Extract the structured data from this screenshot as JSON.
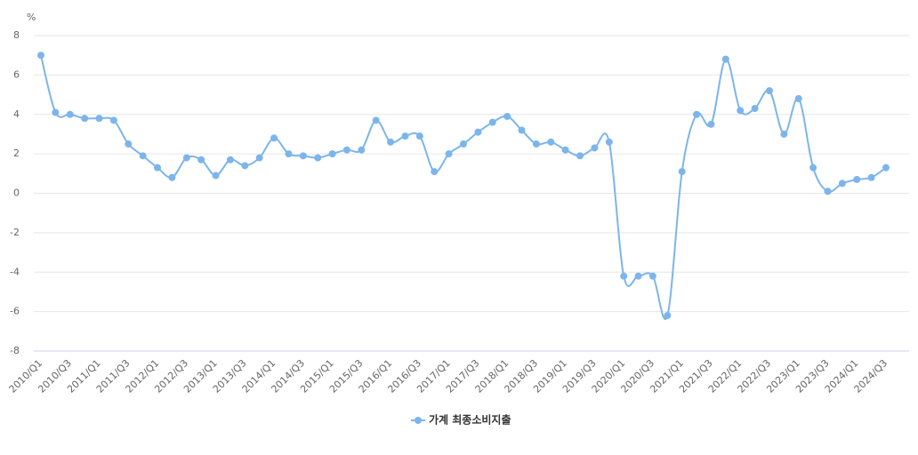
{
  "chart_data": {
    "type": "line",
    "y_unit": "%",
    "categories": [
      "2010/Q1",
      null,
      "2010/Q3",
      null,
      "2011/Q1",
      null,
      "2011/Q3",
      null,
      "2012/Q1",
      null,
      "2012/Q3",
      null,
      "2013/Q1",
      null,
      "2013/Q3",
      null,
      "2014/Q1",
      null,
      "2014/Q3",
      null,
      "2015/Q1",
      null,
      "2015/Q3",
      null,
      "2016/Q1",
      null,
      "2016/Q3",
      null,
      "2017/Q1",
      null,
      "2017/Q3",
      null,
      "2018/Q1",
      null,
      "2018/Q3",
      null,
      "2019/Q1",
      null,
      "2019/Q3",
      null,
      "2020/Q1",
      null,
      "2020/Q3",
      null,
      "2021/Q1",
      null,
      "2021/Q3",
      null,
      "2022/Q1",
      null,
      "2022/Q3",
      null,
      "2023/Q1",
      null,
      "2023/Q3",
      null,
      "2024/Q1",
      null,
      "2024/Q3"
    ],
    "series": [
      {
        "name": "가계 최종소비지출",
        "color": "#7cb5ec",
        "values": [
          7.0,
          4.1,
          4.0,
          3.8,
          3.8,
          3.7,
          2.5,
          1.9,
          1.3,
          0.8,
          1.8,
          1.7,
          0.9,
          1.7,
          1.4,
          1.8,
          2.8,
          2.0,
          1.9,
          1.8,
          2.0,
          2.2,
          2.2,
          3.7,
          2.6,
          2.9,
          2.9,
          1.1,
          2.0,
          2.5,
          3.1,
          3.6,
          3.9,
          3.2,
          2.5,
          2.6,
          2.2,
          1.9,
          2.3,
          2.6,
          -4.2,
          -4.2,
          -4.2,
          -6.2,
          1.1,
          4.0,
          3.5,
          6.8,
          4.2,
          4.3,
          5.2,
          3.0,
          4.8,
          1.3,
          0.1,
          0.5,
          0.7,
          0.8,
          1.3
        ]
      }
    ],
    "ylim": [
      -8,
      8
    ],
    "yticks": [
      -8,
      -6,
      -4,
      -2,
      0,
      2,
      4,
      6,
      8
    ],
    "grid": true,
    "legend": "bottom"
  }
}
